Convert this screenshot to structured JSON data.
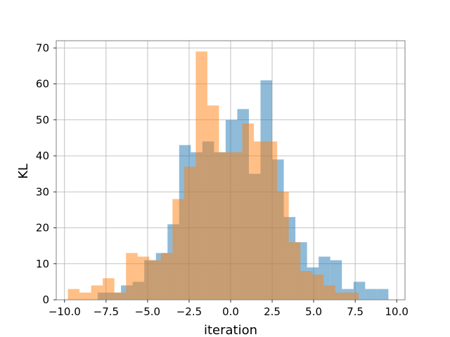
{
  "chart_data": {
    "type": "bar",
    "title": "",
    "xlabel": "iteration",
    "ylabel": "KL",
    "xlim": [
      -10.5,
      10.5
    ],
    "ylim": [
      0,
      72
    ],
    "x_ticks": [
      -10.0,
      -7.5,
      -5.0,
      -2.5,
      0.0,
      2.5,
      5.0,
      7.5,
      10.0
    ],
    "x_tick_labels": [
      "−10.0",
      "−7.5",
      "−5.0",
      "−2.5",
      "0.0",
      "2.5",
      "5.0",
      "7.5",
      "10.0"
    ],
    "y_ticks": [
      0,
      10,
      20,
      30,
      40,
      50,
      60,
      70
    ],
    "y_tick_labels": [
      "0",
      "10",
      "20",
      "30",
      "40",
      "50",
      "60",
      "70"
    ],
    "grid": true,
    "legend": "none",
    "series": [
      {
        "color": "#1f77b4",
        "opacity": 0.5,
        "bin_edges": [
          -8.0,
          -7.3,
          -6.6,
          -5.9,
          -5.2,
          -4.5,
          -3.8,
          -3.1,
          -2.4,
          -1.7,
          -1.0,
          -0.3,
          0.4,
          1.1,
          1.8,
          2.5,
          3.2,
          3.9,
          4.6,
          5.3,
          6.0,
          6.7,
          7.4,
          8.1,
          8.8,
          9.5
        ],
        "values": [
          2,
          2,
          4,
          5,
          11,
          13,
          21,
          43,
          41,
          44,
          41,
          50,
          53,
          35,
          61,
          39,
          23,
          16,
          9,
          12,
          11,
          3,
          5,
          3,
          3
        ]
      },
      {
        "color": "#ff7f0e",
        "opacity": 0.5,
        "bin_edges": [
          -9.8,
          -9.1,
          -8.4,
          -7.7,
          -7.0,
          -6.3,
          -5.6,
          -4.9,
          -4.2,
          -3.5,
          -2.8,
          -2.1,
          -1.4,
          -0.7,
          0.0,
          0.7,
          1.4,
          2.1,
          2.8,
          3.5,
          4.2,
          4.9,
          5.6,
          6.3,
          7.0,
          7.7
        ],
        "values": [
          3,
          2,
          4,
          6,
          2,
          13,
          12,
          11,
          13,
          28,
          37,
          69,
          54,
          41,
          41,
          49,
          44,
          44,
          30,
          16,
          8,
          7,
          4,
          2,
          2
        ]
      }
    ]
  }
}
